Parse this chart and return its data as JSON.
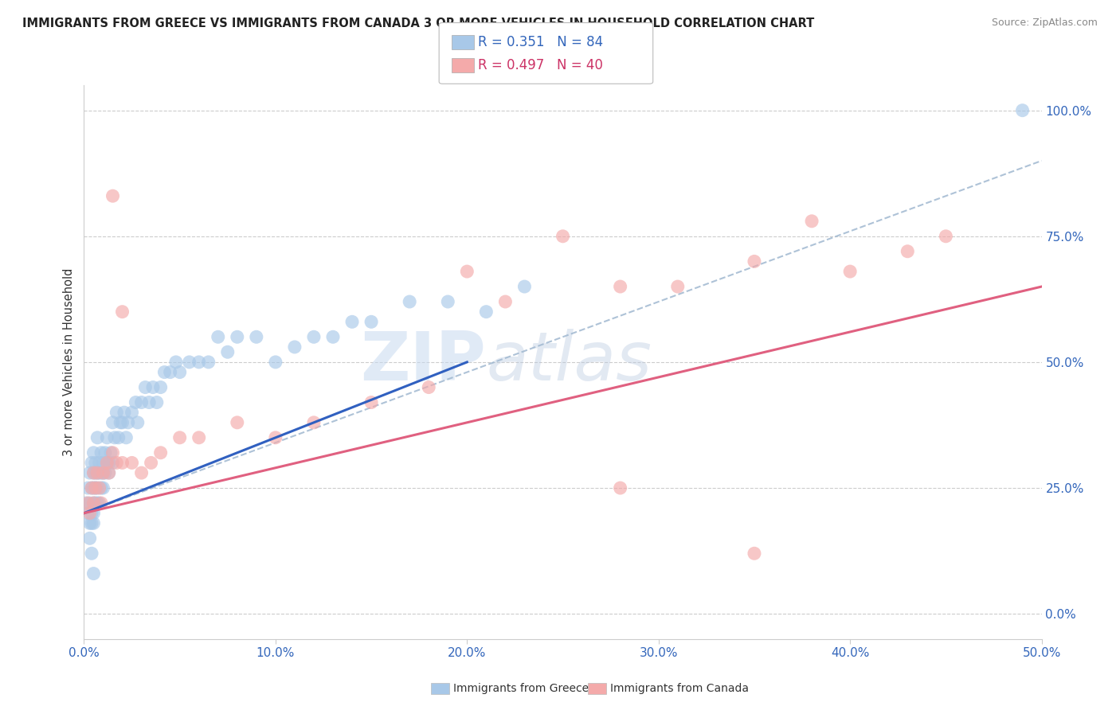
{
  "title": "IMMIGRANTS FROM GREECE VS IMMIGRANTS FROM CANADA 3 OR MORE VEHICLES IN HOUSEHOLD CORRELATION CHART",
  "source": "Source: ZipAtlas.com",
  "ylabel": "3 or more Vehicles in Household",
  "ylabel_right_ticks": [
    "0.0%",
    "25.0%",
    "50.0%",
    "75.0%",
    "100.0%"
  ],
  "ylabel_right_vals": [
    0.0,
    0.25,
    0.5,
    0.75,
    1.0
  ],
  "legend_label1": "Immigrants from Greece",
  "legend_label2": "Immigrants from Canada",
  "r1": 0.351,
  "n1": 84,
  "r2": 0.497,
  "n2": 40,
  "color_greece": "#a8c8e8",
  "color_canada": "#f4aaaa",
  "color_greece_line": "#3060c0",
  "color_canada_line": "#e06080",
  "color_dash": "#a0b8d0",
  "watermark_zip": "ZIP",
  "watermark_atlas": "atlas",
  "xlim": [
    0.0,
    0.5
  ],
  "ylim": [
    -0.05,
    1.05
  ],
  "greece_scatter_x": [
    0.001,
    0.002,
    0.002,
    0.003,
    0.003,
    0.003,
    0.004,
    0.004,
    0.004,
    0.004,
    0.005,
    0.005,
    0.005,
    0.005,
    0.005,
    0.005,
    0.006,
    0.006,
    0.006,
    0.006,
    0.007,
    0.007,
    0.007,
    0.007,
    0.008,
    0.008,
    0.008,
    0.009,
    0.009,
    0.009,
    0.01,
    0.01,
    0.01,
    0.011,
    0.011,
    0.012,
    0.012,
    0.013,
    0.013,
    0.014,
    0.015,
    0.015,
    0.016,
    0.017,
    0.018,
    0.019,
    0.02,
    0.021,
    0.022,
    0.023,
    0.025,
    0.027,
    0.028,
    0.03,
    0.032,
    0.034,
    0.036,
    0.038,
    0.04,
    0.042,
    0.045,
    0.048,
    0.05,
    0.055,
    0.06,
    0.065,
    0.07,
    0.075,
    0.08,
    0.09,
    0.1,
    0.11,
    0.12,
    0.13,
    0.14,
    0.15,
    0.17,
    0.19,
    0.21,
    0.23,
    0.003,
    0.004,
    0.005,
    0.49
  ],
  "greece_scatter_y": [
    0.22,
    0.2,
    0.25,
    0.18,
    0.22,
    0.28,
    0.2,
    0.25,
    0.3,
    0.18,
    0.22,
    0.25,
    0.28,
    0.2,
    0.18,
    0.32,
    0.25,
    0.28,
    0.22,
    0.3,
    0.28,
    0.25,
    0.22,
    0.35,
    0.28,
    0.3,
    0.22,
    0.32,
    0.25,
    0.28,
    0.3,
    0.25,
    0.28,
    0.32,
    0.28,
    0.35,
    0.3,
    0.3,
    0.28,
    0.32,
    0.38,
    0.3,
    0.35,
    0.4,
    0.35,
    0.38,
    0.38,
    0.4,
    0.35,
    0.38,
    0.4,
    0.42,
    0.38,
    0.42,
    0.45,
    0.42,
    0.45,
    0.42,
    0.45,
    0.48,
    0.48,
    0.5,
    0.48,
    0.5,
    0.5,
    0.5,
    0.55,
    0.52,
    0.55,
    0.55,
    0.5,
    0.53,
    0.55,
    0.55,
    0.58,
    0.58,
    0.62,
    0.62,
    0.6,
    0.65,
    0.15,
    0.12,
    0.08,
    1.0
  ],
  "canada_scatter_x": [
    0.002,
    0.003,
    0.004,
    0.005,
    0.005,
    0.006,
    0.007,
    0.008,
    0.009,
    0.01,
    0.012,
    0.013,
    0.015,
    0.017,
    0.02,
    0.025,
    0.03,
    0.035,
    0.04,
    0.05,
    0.06,
    0.08,
    0.1,
    0.12,
    0.15,
    0.18,
    0.2,
    0.22,
    0.25,
    0.28,
    0.31,
    0.35,
    0.38,
    0.4,
    0.43,
    0.015,
    0.02,
    0.28,
    0.35,
    0.45
  ],
  "canada_scatter_y": [
    0.22,
    0.2,
    0.25,
    0.22,
    0.28,
    0.25,
    0.28,
    0.25,
    0.22,
    0.28,
    0.3,
    0.28,
    0.32,
    0.3,
    0.3,
    0.3,
    0.28,
    0.3,
    0.32,
    0.35,
    0.35,
    0.38,
    0.35,
    0.38,
    0.42,
    0.45,
    0.68,
    0.62,
    0.75,
    0.65,
    0.65,
    0.7,
    0.78,
    0.68,
    0.72,
    0.83,
    0.6,
    0.25,
    0.12,
    0.75
  ],
  "greece_line": {
    "x0": 0.0,
    "x1": 0.2,
    "y0": 0.2,
    "y1": 0.5
  },
  "canada_line": {
    "x0": 0.0,
    "x1": 0.5,
    "y0": 0.2,
    "y1": 0.65
  },
  "dash_line": {
    "x0": 0.0,
    "x1": 0.5,
    "y0": 0.2,
    "y1": 0.9
  }
}
